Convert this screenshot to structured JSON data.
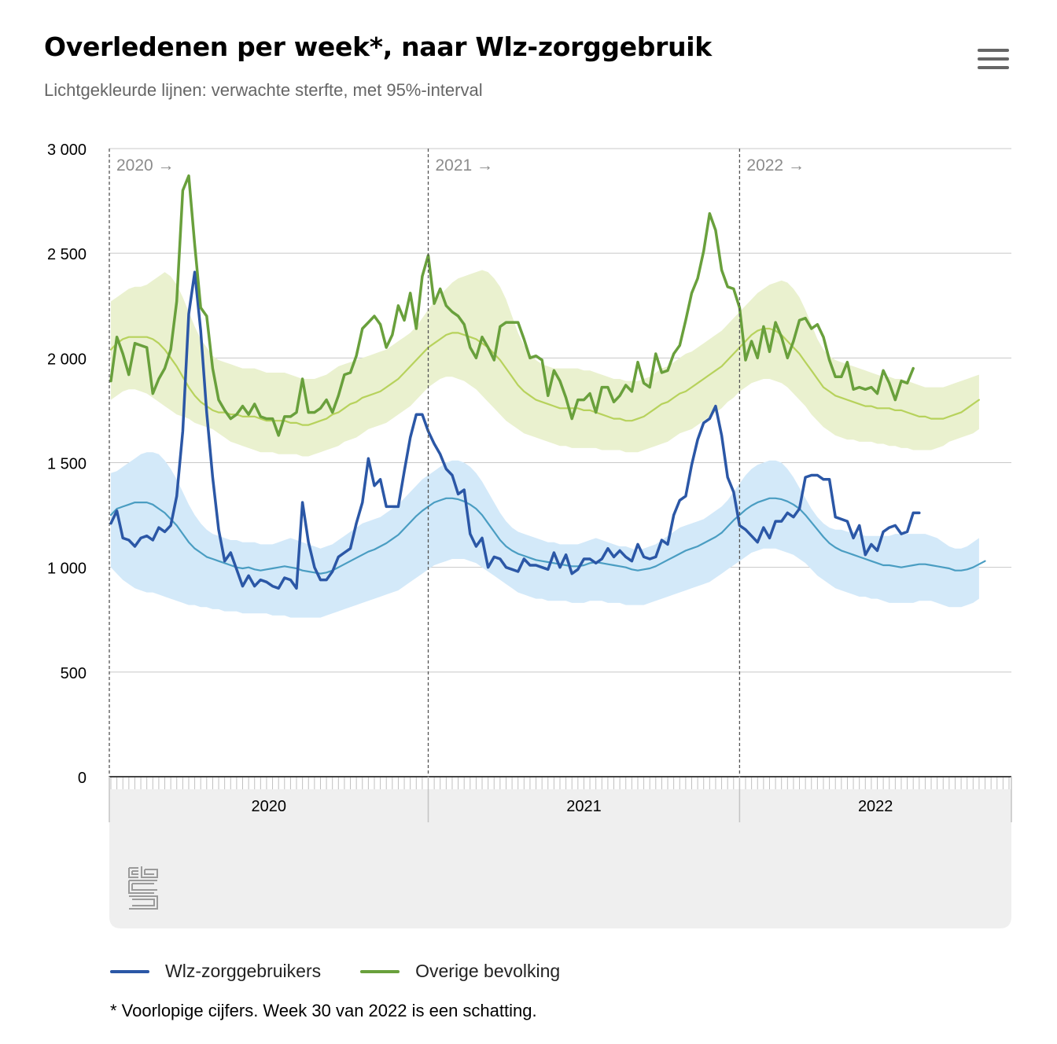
{
  "header": {
    "title": "Overledenen per week*, naar Wlz-zorggebruik",
    "subtitle": "Lichtgekleurde lijnen: verwachte sterfte, met 95%-interval",
    "menu_icon": "hamburger-menu-icon"
  },
  "footnote": "* Voorlopige cijfers. Week 30 van 2022 is een schatting.",
  "navigator": {
    "years": [
      "2020",
      "2021",
      "2022"
    ],
    "logo": "cbs-logo"
  },
  "colors": {
    "wlz": "#2b57a6",
    "overige": "#69a03c",
    "wlz_expected": "#4a9dc2",
    "overige_expected": "#b7d25c",
    "wlz_band": "#d3e9f9",
    "overige_band": "#eaf1cf"
  },
  "chart_data": {
    "type": "line",
    "x_unit": "week",
    "ylim": [
      0,
      3000
    ],
    "yticks": [
      "0",
      "500",
      "1 000",
      "1 500",
      "2 000",
      "2 500",
      "3 000"
    ],
    "grid": true,
    "legend_position": "bottom",
    "year_markers": [
      {
        "label": "2020 →",
        "week_index": 0
      },
      {
        "label": "2021 →",
        "week_index": 53
      },
      {
        "label": "2022 →",
        "week_index": 105
      }
    ],
    "series": [
      {
        "name": "Wlz-zorggebruikers",
        "values": [
          1210,
          1270,
          1140,
          1130,
          1100,
          1140,
          1150,
          1130,
          1190,
          1170,
          1200,
          1340,
          1650,
          2210,
          2410,
          2130,
          1740,
          1430,
          1180,
          1030,
          1070,
          990,
          910,
          960,
          910,
          940,
          930,
          910,
          900,
          950,
          940,
          900,
          1310,
          1120,
          1000,
          940,
          940,
          980,
          1050,
          1070,
          1090,
          1210,
          1310,
          1520,
          1390,
          1420,
          1290,
          1290,
          1290,
          1460,
          1620,
          1730,
          1730,
          1650,
          1590,
          1540,
          1470,
          1440,
          1350,
          1370,
          1160,
          1100,
          1140,
          1000,
          1050,
          1040,
          1000,
          990,
          980,
          1040,
          1010,
          1010,
          1000,
          990,
          1070,
          1000,
          1060,
          970,
          990,
          1040,
          1040,
          1020,
          1040,
          1090,
          1050,
          1080,
          1050,
          1030,
          1110,
          1050,
          1040,
          1050,
          1130,
          1110,
          1250,
          1320,
          1340,
          1490,
          1610,
          1690,
          1710,
          1770,
          1630,
          1430,
          1360,
          1200,
          1180,
          1150,
          1120,
          1190,
          1140,
          1220,
          1220,
          1260,
          1240,
          1280,
          1430,
          1440,
          1440,
          1420,
          1420,
          1240,
          1230,
          1220,
          1140,
          1200,
          1060,
          1110,
          1080,
          1170,
          1190,
          1200,
          1160,
          1170,
          1260,
          1260
        ]
      },
      {
        "name": "Overige bevolking",
        "values": [
          1890,
          2100,
          2020,
          1920,
          2070,
          2060,
          2050,
          1830,
          1900,
          1950,
          2040,
          2270,
          2800,
          2870,
          2540,
          2240,
          2200,
          1950,
          1800,
          1750,
          1710,
          1730,
          1770,
          1730,
          1780,
          1720,
          1710,
          1710,
          1630,
          1720,
          1720,
          1740,
          1900,
          1740,
          1740,
          1760,
          1800,
          1740,
          1820,
          1920,
          1930,
          2010,
          2140,
          2170,
          2200,
          2160,
          2050,
          2110,
          2250,
          2180,
          2310,
          2140,
          2390,
          2490,
          2260,
          2330,
          2250,
          2220,
          2200,
          2160,
          2050,
          2000,
          2100,
          2050,
          1990,
          2150,
          2170,
          2170,
          2170,
          2090,
          2000,
          2010,
          1990,
          1820,
          1940,
          1890,
          1810,
          1710,
          1800,
          1800,
          1830,
          1740,
          1860,
          1860,
          1790,
          1820,
          1870,
          1840,
          1980,
          1880,
          1860,
          2020,
          1930,
          1940,
          2020,
          2060,
          2180,
          2310,
          2380,
          2510,
          2690,
          2610,
          2420,
          2340,
          2330,
          2240,
          1990,
          2080,
          2000,
          2150,
          2030,
          2170,
          2100,
          2000,
          2080,
          2180,
          2190,
          2140,
          2160,
          2100,
          1990,
          1910,
          1910,
          1980,
          1850,
          1860,
          1850,
          1860,
          1830,
          1940,
          1880,
          1800,
          1890,
          1880,
          1950
        ]
      },
      {
        "name": "",
        "values": [
          1250,
          1280,
          1290,
          1300,
          1310,
          1310,
          1310,
          1300,
          1280,
          1260,
          1230,
          1200,
          1160,
          1120,
          1090,
          1070,
          1050,
          1040,
          1030,
          1020,
          1010,
          1000,
          995,
          1000,
          990,
          985,
          990,
          995,
          1000,
          1005,
          1000,
          995,
          985,
          980,
          975,
          970,
          975,
          985,
          1000,
          1015,
          1030,
          1045,
          1060,
          1075,
          1085,
          1100,
          1115,
          1135,
          1155,
          1185,
          1215,
          1245,
          1270,
          1290,
          1310,
          1320,
          1330,
          1330,
          1325,
          1315,
          1300,
          1280,
          1250,
          1210,
          1170,
          1130,
          1100,
          1080,
          1065,
          1055,
          1045,
          1035,
          1030,
          1025,
          1020,
          1015,
          1010,
          1005,
          1005,
          1010,
          1020,
          1025,
          1020,
          1015,
          1010,
          1005,
          1000,
          990,
          985,
          990,
          995,
          1005,
          1020,
          1035,
          1050,
          1065,
          1080,
          1090,
          1100,
          1115,
          1130,
          1145,
          1165,
          1195,
          1225,
          1250,
          1275,
          1295,
          1310,
          1320,
          1330,
          1330,
          1325,
          1315,
          1300,
          1280,
          1250,
          1215,
          1180,
          1145,
          1115,
          1095,
          1080,
          1070,
          1060,
          1050,
          1040,
          1030,
          1020,
          1010,
          1010,
          1005,
          1000,
          1005,
          1010,
          1015,
          1015,
          1010,
          1005,
          1000,
          995,
          985,
          985,
          990,
          1000,
          1015,
          1030
        ]
      },
      {
        "name": "",
        "values": [
          2040,
          2070,
          2090,
          2100,
          2100,
          2100,
          2100,
          2090,
          2070,
          2040,
          2000,
          1960,
          1910,
          1860,
          1820,
          1790,
          1770,
          1750,
          1740,
          1740,
          1730,
          1730,
          1720,
          1720,
          1720,
          1710,
          1700,
          1700,
          1700,
          1700,
          1690,
          1690,
          1680,
          1680,
          1690,
          1700,
          1710,
          1730,
          1740,
          1760,
          1780,
          1790,
          1810,
          1820,
          1830,
          1840,
          1860,
          1880,
          1900,
          1930,
          1960,
          1990,
          2020,
          2050,
          2070,
          2090,
          2110,
          2120,
          2120,
          2110,
          2100,
          2090,
          2070,
          2050,
          2020,
          1990,
          1950,
          1910,
          1870,
          1840,
          1820,
          1800,
          1790,
          1780,
          1770,
          1760,
          1760,
          1760,
          1760,
          1750,
          1750,
          1740,
          1730,
          1720,
          1710,
          1710,
          1700,
          1700,
          1710,
          1720,
          1740,
          1760,
          1780,
          1790,
          1810,
          1830,
          1840,
          1860,
          1880,
          1900,
          1920,
          1940,
          1960,
          1990,
          2020,
          2050,
          2080,
          2110,
          2130,
          2140,
          2140,
          2130,
          2110,
          2080,
          2050,
          2020,
          1980,
          1940,
          1900,
          1860,
          1840,
          1820,
          1810,
          1800,
          1790,
          1780,
          1770,
          1770,
          1760,
          1760,
          1760,
          1750,
          1750,
          1740,
          1730,
          1720,
          1720,
          1710,
          1710,
          1710,
          1720,
          1730,
          1740,
          1760,
          1780,
          1800
        ]
      }
    ],
    "bands": [
      {
        "name": "",
        "upper": [
          1450,
          1460,
          1480,
          1500,
          1520,
          1540,
          1550,
          1550,
          1540,
          1510,
          1470,
          1420,
          1360,
          1300,
          1250,
          1210,
          1180,
          1160,
          1150,
          1140,
          1130,
          1130,
          1120,
          1120,
          1120,
          1110,
          1110,
          1110,
          1120,
          1130,
          1140,
          1130,
          1120,
          1110,
          1100,
          1090,
          1100,
          1110,
          1130,
          1150,
          1170,
          1190,
          1210,
          1220,
          1230,
          1240,
          1260,
          1280,
          1300,
          1330,
          1360,
          1390,
          1420,
          1440,
          1460,
          1480,
          1500,
          1510,
          1510,
          1500,
          1480,
          1450,
          1410,
          1360,
          1310,
          1260,
          1220,
          1190,
          1170,
          1160,
          1150,
          1140,
          1130,
          1120,
          1120,
          1110,
          1110,
          1110,
          1110,
          1120,
          1130,
          1140,
          1130,
          1120,
          1110,
          1100,
          1100,
          1090,
          1080,
          1090,
          1100,
          1110,
          1130,
          1150,
          1170,
          1190,
          1200,
          1210,
          1220,
          1230,
          1250,
          1270,
          1290,
          1320,
          1360,
          1400,
          1440,
          1470,
          1490,
          1500,
          1510,
          1510,
          1500,
          1470,
          1430,
          1380,
          1330,
          1280,
          1240,
          1210,
          1190,
          1180,
          1180,
          1170,
          1170,
          1160,
          1150,
          1150,
          1150,
          1150,
          1150,
          1160,
          1160,
          1160,
          1160,
          1160,
          1160,
          1150,
          1140,
          1120,
          1100,
          1090,
          1090,
          1100,
          1120,
          1140
        ]
      },
      {
        "name": "",
        "upper": [
          2270,
          2290,
          2310,
          2330,
          2340,
          2340,
          2350,
          2370,
          2390,
          2410,
          2390,
          2350,
          2290,
          2220,
          2150,
          2090,
          2050,
          2010,
          1990,
          1980,
          1970,
          1960,
          1950,
          1950,
          1950,
          1940,
          1930,
          1930,
          1930,
          1930,
          1920,
          1910,
          1900,
          1900,
          1900,
          1910,
          1920,
          1940,
          1960,
          1970,
          1980,
          1990,
          2000,
          2010,
          2020,
          2030,
          2040,
          2060,
          2080,
          2100,
          2120,
          2150,
          2190,
          2230,
          2270,
          2300,
          2330,
          2360,
          2380,
          2390,
          2400,
          2410,
          2420,
          2410,
          2380,
          2340,
          2280,
          2200,
          2120,
          2060,
          2020,
          1990,
          1970,
          1960,
          1950,
          1950,
          1950,
          1950,
          1950,
          1940,
          1940,
          1930,
          1920,
          1910,
          1900,
          1900,
          1890,
          1890,
          1890,
          1900,
          1910,
          1930,
          1950,
          1960,
          1980,
          2000,
          2020,
          2030,
          2050,
          2070,
          2090,
          2110,
          2130,
          2160,
          2190,
          2220,
          2250,
          2280,
          2310,
          2330,
          2350,
          2360,
          2370,
          2360,
          2330,
          2290,
          2230,
          2160,
          2090,
          2040,
          2010,
          1990,
          1980,
          1970,
          1960,
          1950,
          1940,
          1930,
          1920,
          1910,
          1910,
          1900,
          1900,
          1890,
          1880,
          1870,
          1860,
          1860,
          1860,
          1860,
          1870,
          1880,
          1890,
          1900,
          1910,
          1920
        ]
      }
    ],
    "bands_lower": [
      [
        1000,
        970,
        940,
        920,
        900,
        890,
        880,
        880,
        870,
        860,
        850,
        840,
        830,
        820,
        820,
        810,
        810,
        800,
        800,
        790,
        790,
        790,
        780,
        780,
        780,
        780,
        780,
        770,
        770,
        770,
        760,
        760,
        760,
        760,
        760,
        760,
        770,
        780,
        790,
        800,
        810,
        820,
        830,
        840,
        850,
        860,
        870,
        880,
        890,
        910,
        930,
        950,
        970,
        990,
        1010,
        1020,
        1030,
        1040,
        1040,
        1040,
        1030,
        1020,
        1000,
        980,
        960,
        940,
        920,
        900,
        880,
        870,
        860,
        850,
        850,
        840,
        840,
        840,
        840,
        830,
        830,
        830,
        840,
        840,
        840,
        830,
        830,
        830,
        820,
        820,
        820,
        820,
        830,
        840,
        850,
        860,
        870,
        880,
        890,
        900,
        910,
        920,
        930,
        950,
        970,
        990,
        1010,
        1030,
        1050,
        1070,
        1080,
        1090,
        1090,
        1090,
        1080,
        1070,
        1060,
        1040,
        1020,
        990,
        960,
        940,
        920,
        900,
        890,
        880,
        870,
        860,
        860,
        850,
        850,
        840,
        830,
        830,
        830,
        830,
        830,
        840,
        840,
        840,
        830,
        820,
        810,
        810,
        810,
        820,
        830,
        850
      ],
      [
        1800,
        1820,
        1840,
        1850,
        1850,
        1840,
        1830,
        1810,
        1790,
        1770,
        1750,
        1730,
        1720,
        1710,
        1690,
        1680,
        1670,
        1660,
        1640,
        1620,
        1600,
        1590,
        1580,
        1570,
        1560,
        1550,
        1550,
        1550,
        1540,
        1540,
        1540,
        1540,
        1530,
        1530,
        1540,
        1550,
        1560,
        1570,
        1580,
        1600,
        1610,
        1620,
        1640,
        1660,
        1670,
        1680,
        1690,
        1710,
        1730,
        1750,
        1770,
        1800,
        1830,
        1860,
        1880,
        1900,
        1910,
        1910,
        1900,
        1890,
        1870,
        1850,
        1820,
        1790,
        1760,
        1730,
        1700,
        1680,
        1660,
        1640,
        1630,
        1620,
        1610,
        1600,
        1590,
        1580,
        1580,
        1570,
        1570,
        1570,
        1570,
        1570,
        1560,
        1560,
        1560,
        1560,
        1550,
        1550,
        1550,
        1560,
        1570,
        1580,
        1590,
        1600,
        1620,
        1640,
        1650,
        1660,
        1680,
        1700,
        1720,
        1740,
        1760,
        1790,
        1810,
        1840,
        1860,
        1880,
        1890,
        1900,
        1900,
        1890,
        1880,
        1860,
        1830,
        1800,
        1770,
        1730,
        1700,
        1670,
        1650,
        1630,
        1620,
        1610,
        1610,
        1600,
        1600,
        1600,
        1590,
        1590,
        1580,
        1580,
        1570,
        1570,
        1560,
        1560,
        1560,
        1560,
        1570,
        1580,
        1600,
        1610,
        1620,
        1630,
        1640,
        1660
      ]
    ]
  }
}
